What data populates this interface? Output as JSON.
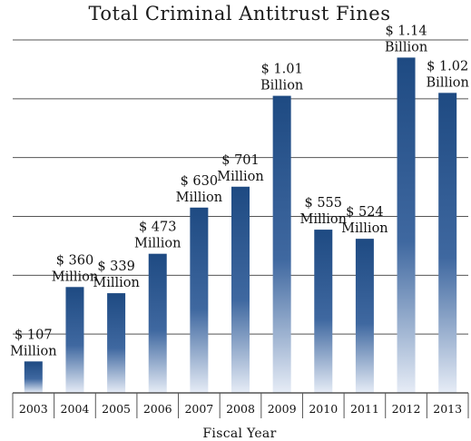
{
  "chart_data": {
    "type": "bar",
    "title": "Total Criminal Antitrust Fines",
    "xlabel": "Fiscal Year",
    "ylabel": "",
    "categories": [
      "2003",
      "2004",
      "2005",
      "2006",
      "2007",
      "2008",
      "2009",
      "2010",
      "2011",
      "2012",
      "2013"
    ],
    "values": [
      107,
      360,
      339,
      473,
      630,
      701,
      1010,
      555,
      524,
      1140,
      1020
    ],
    "value_unit": "Million USD",
    "labels": [
      {
        "amount": "$ 107",
        "unit": "Million"
      },
      {
        "amount": "$ 360",
        "unit": "Million"
      },
      {
        "amount": "$ 339",
        "unit": "Million"
      },
      {
        "amount": "$ 473",
        "unit": "Million"
      },
      {
        "amount": "$ 630",
        "unit": "Million"
      },
      {
        "amount": "$ 701",
        "unit": "Million"
      },
      {
        "amount": "$ 1.01",
        "unit": "Billion"
      },
      {
        "amount": "$ 555",
        "unit": "Million"
      },
      {
        "amount": "$ 524",
        "unit": "Million"
      },
      {
        "amount": "$ 1.14",
        "unit": "Billion"
      },
      {
        "amount": "$ 1.02",
        "unit": "Billion"
      }
    ],
    "ylim": [
      0,
      1200
    ],
    "grid": true,
    "y_tick_labels_shown": false,
    "legend": "none",
    "colors": {
      "bar_top": "#1e4a82",
      "bar_bottom": "#e6ecf6",
      "grid": "#555555"
    }
  }
}
